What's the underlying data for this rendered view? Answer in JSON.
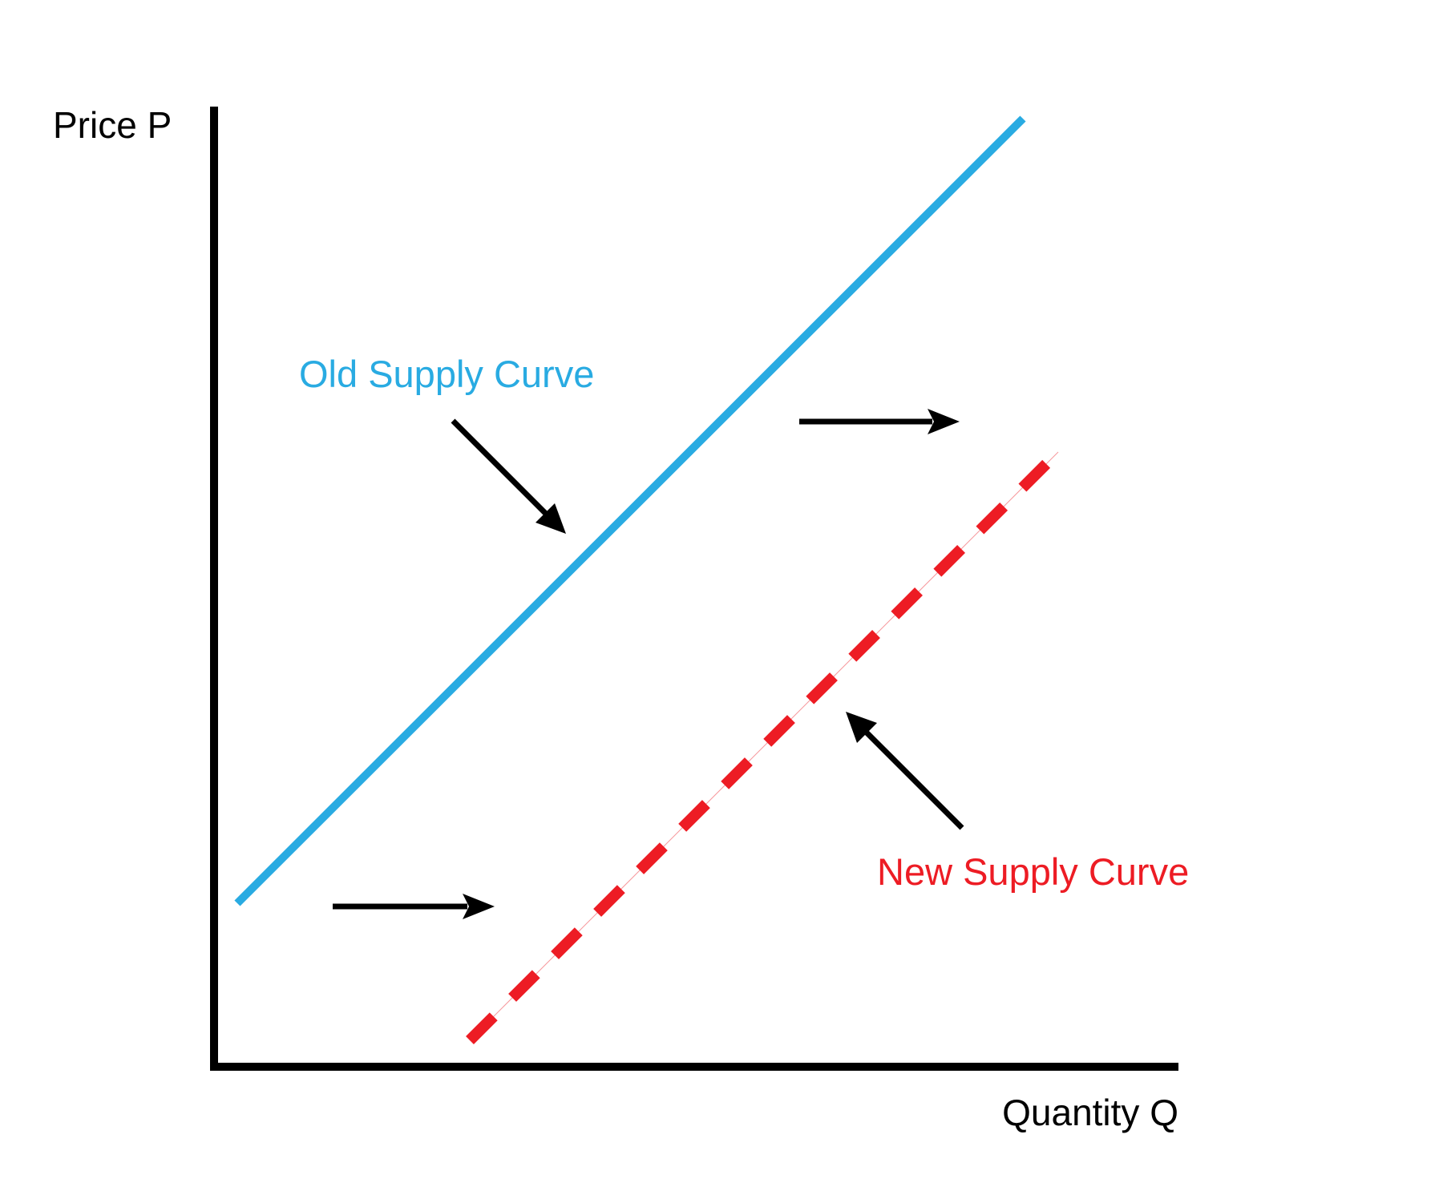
{
  "diagram": {
    "y_axis_label": "Price P",
    "x_axis_label": "Quantity Q",
    "old_curve": {
      "label": "Old Supply Curve",
      "color": "#29ABE2",
      "style": "solid"
    },
    "new_curve": {
      "label": "New Supply Curve",
      "color": "#ED1C24",
      "style": "dashed"
    },
    "arrow_color": "#000000",
    "axis_color": "#000000"
  }
}
